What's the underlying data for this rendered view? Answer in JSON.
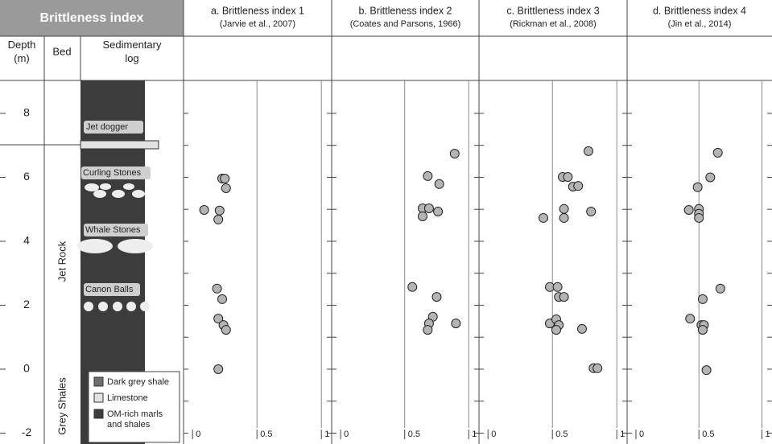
{
  "header": {
    "title": "Brittleness index",
    "depth_label": "Depth (m)",
    "bed_label": "Bed",
    "log_label": "Sedimentary log"
  },
  "depth_axis": {
    "ylim": [
      -2.34,
      9.03
    ],
    "yticks": [
      -2,
      0,
      2,
      4,
      6,
      8
    ]
  },
  "log": {
    "beds": [
      "Jet Rock",
      "Grey Shales"
    ],
    "features": [
      "Jet dogger",
      "Curling Stones",
      "Whale Stones",
      "Canon Balls"
    ],
    "legend": [
      {
        "label": "Dark grey shale",
        "color": "#6e6e6e"
      },
      {
        "label": "Limestone",
        "color": "#e2e2e2"
      },
      {
        "label": "OM-rich marls and shales",
        "color": "#3c3c3c"
      }
    ]
  },
  "chart_data": [
    {
      "type": "scatter",
      "title": "a.  Brittleness index 1",
      "subtitle": "(Jarvie et al., 2007)",
      "color": "#b4b4b4",
      "xlim": [
        -0.07,
        1.08
      ],
      "xticks": [
        0,
        0.5,
        1
      ],
      "ylim": [
        -2.34,
        9.03
      ],
      "yminor": [
        -2,
        -1,
        0,
        1,
        2,
        3,
        4,
        5,
        6,
        7,
        8
      ],
      "x": [
        0.23,
        0.25,
        0.26,
        0.09,
        0.21,
        0.2,
        0.19,
        0.23,
        0.2,
        0.24,
        0.26,
        0.2
      ],
      "y": [
        5.96,
        5.96,
        5.66,
        4.98,
        4.96,
        4.68,
        2.52,
        2.19,
        1.58,
        1.38,
        1.23,
        0
      ]
    },
    {
      "type": "scatter",
      "title": "b.  Brittleness index 2",
      "subtitle": "(Coates and Parsons, 1966)",
      "color": "#b4b4b4",
      "xlim": [
        -0.07,
        1.08
      ],
      "xticks": [
        0,
        0.5,
        1
      ],
      "ylim": [
        -2.34,
        9.03
      ],
      "yminor": [
        -2,
        -1,
        0,
        1,
        2,
        3,
        4,
        5,
        6,
        7,
        8
      ],
      "x": [
        0.89,
        0.68,
        0.77,
        0.64,
        0.69,
        0.76,
        0.64,
        0.56,
        0.75,
        0.72,
        0.69,
        0.68,
        0.9
      ],
      "y": [
        6.74,
        6.04,
        5.79,
        5.03,
        5.03,
        4.93,
        4.78,
        2.57,
        2.26,
        1.64,
        1.43,
        1.23,
        1.43
      ]
    },
    {
      "type": "scatter",
      "title": "c.  Brittleness index 3",
      "subtitle": "(Rickman et al., 2008)",
      "color": "#b4b4b4",
      "xlim": [
        -0.07,
        1.08
      ],
      "xticks": [
        0,
        0.5,
        1
      ],
      "ylim": [
        -2.34,
        9.03
      ],
      "yminor": [
        -2,
        -1,
        0,
        1,
        2,
        3,
        4,
        5,
        6,
        7,
        8
      ],
      "x": [
        0.78,
        0.58,
        0.62,
        0.66,
        0.7,
        0.59,
        0.8,
        0.43,
        0.59,
        0.48,
        0.54,
        0.55,
        0.59,
        0.48,
        0.53,
        0.55,
        0.53,
        0.73,
        0.82,
        0.85
      ],
      "y": [
        6.82,
        6.01,
        6.01,
        5.71,
        5.73,
        5.01,
        4.93,
        4.73,
        4.73,
        2.57,
        2.57,
        2.26,
        2.26,
        1.43,
        1.56,
        1.38,
        1.23,
        1.26,
        0.03,
        0.03
      ]
    },
    {
      "type": "scatter",
      "title": "d.  Brittleness index 4",
      "subtitle": "(Jin et al., 2014)",
      "color": "#b4b4b4",
      "xlim": [
        -0.07,
        1.08
      ],
      "xticks": [
        0,
        0.5,
        1
      ],
      "ylim": [
        -2.34,
        9.03
      ],
      "yminor": [
        -2,
        -1,
        0,
        1,
        2,
        3,
        4,
        5,
        6,
        7,
        8
      ],
      "x": [
        0.65,
        0.59,
        0.49,
        0.42,
        0.5,
        0.5,
        0.5,
        0.67,
        0.53,
        0.43,
        0.52,
        0.54,
        0.53,
        0.56
      ],
      "y": [
        6.77,
        6.0,
        5.69,
        4.98,
        5.01,
        4.86,
        4.73,
        2.52,
        2.19,
        1.58,
        1.38,
        1.38,
        1.23,
        -0.03
      ]
    }
  ]
}
